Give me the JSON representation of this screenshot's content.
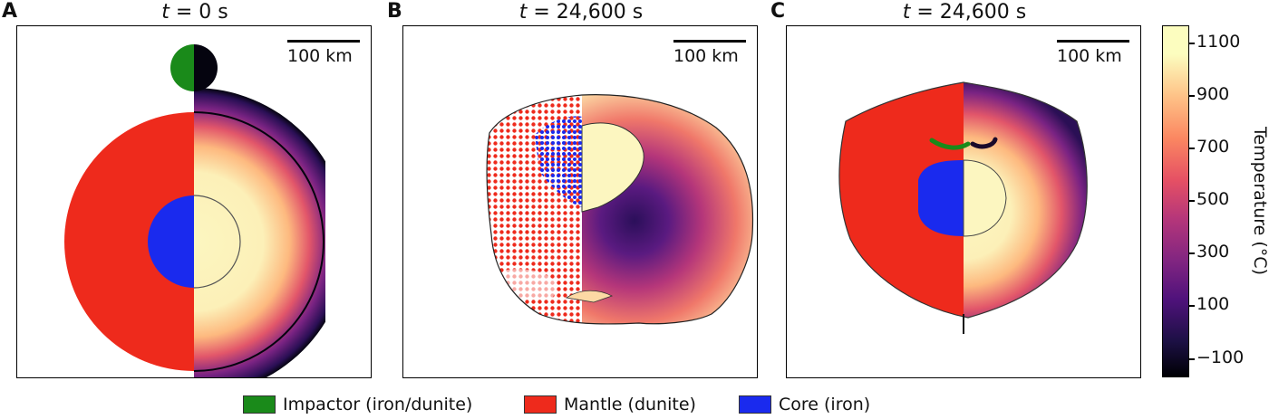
{
  "panels": [
    {
      "letter": "A",
      "title_var": "t",
      "title_rest": " = 0 s",
      "scale": "100 km"
    },
    {
      "letter": "B",
      "title_var": "t",
      "title_rest": " = 24,600 s",
      "scale": "100 km"
    },
    {
      "letter": "C",
      "title_var": "t",
      "title_rest": " = 24,600 s",
      "scale": "100 km"
    }
  ],
  "colorbar": {
    "title": "Temperature (°C)",
    "ticks": [
      "1100",
      "900",
      "700",
      "500",
      "300",
      "100",
      "−100"
    ]
  },
  "legend": [
    {
      "label": "Impactor (iron/dunite)",
      "color": "#1a8a1a"
    },
    {
      "label": "Mantle (dunite)",
      "color": "#ee2a1c"
    },
    {
      "label": "Core (iron)",
      "color": "#1a2aee"
    }
  ],
  "colors": {
    "mantle": "#ee2a1c",
    "core": "#1a2aee",
    "impactor": "#1a8a1a",
    "hot": "#fcf6c0"
  }
}
